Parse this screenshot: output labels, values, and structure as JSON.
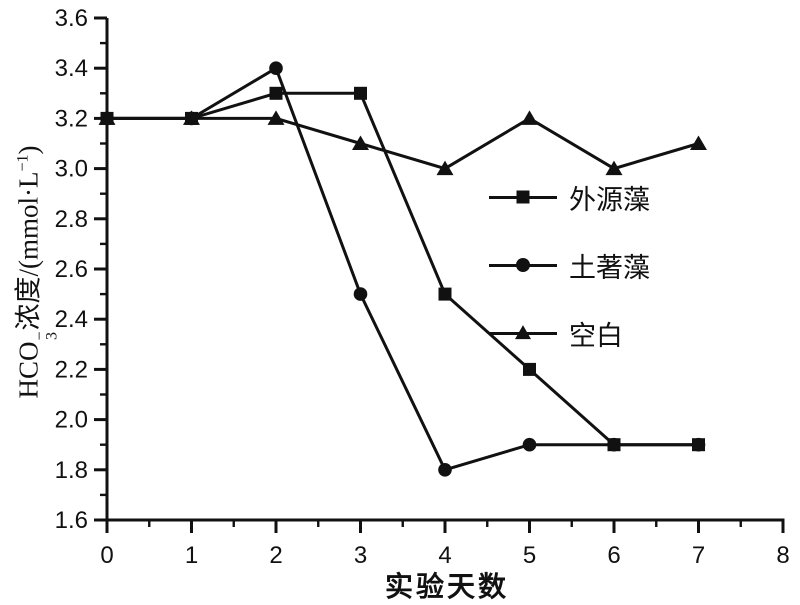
{
  "chart_data": {
    "type": "line",
    "title": "",
    "x": [
      0,
      1,
      2,
      3,
      4,
      5,
      6,
      7
    ],
    "series": [
      {
        "key": "exogenous-algae",
        "name": "外源藻",
        "marker": "square",
        "color": "#111111",
        "values": [
          3.2,
          3.2,
          3.3,
          3.3,
          2.5,
          2.2,
          1.9,
          1.9
        ]
      },
      {
        "key": "native-algae",
        "name": "土著藻",
        "marker": "circle",
        "color": "#111111",
        "values": [
          3.2,
          3.2,
          3.4,
          2.5,
          1.8,
          1.9,
          1.9,
          1.9
        ]
      },
      {
        "key": "blank-control",
        "name": "空白",
        "marker": "triangle",
        "color": "#111111",
        "values": [
          3.2,
          3.2,
          3.2,
          3.1,
          3.0,
          3.2,
          3.0,
          3.1
        ]
      }
    ],
    "xlabel": "实验天数",
    "ylabel": "HCO3⁻浓度/(mmol·L⁻¹)",
    "xlim": [
      0,
      8
    ],
    "ylim": [
      1.6,
      3.6
    ],
    "x_tick_labels": [
      "0",
      "1",
      "2",
      "3",
      "4",
      "5",
      "6",
      "7",
      "8"
    ],
    "y_tick_labels": [
      "1.6",
      "1.8",
      "2.0",
      "2.2",
      "2.4",
      "2.6",
      "2.8",
      "3.0",
      "3.2",
      "3.4",
      "3.6"
    ],
    "x_minor_step": 0.5,
    "y_minor_step": 0.1,
    "grid": false,
    "legend_position": "center-right",
    "axis_color": "#111111"
  },
  "ylabel_parts": {
    "prefix": "HCO",
    "ion_sup": "−",
    "ion_sub": "3",
    "mid": "浓度/(mmol·L",
    "exp": "−1",
    "suffix": ")"
  }
}
